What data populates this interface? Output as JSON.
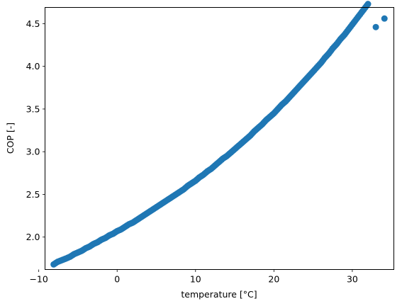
{
  "chart_data": {
    "type": "scatter",
    "title": "",
    "xlabel": "temperature [°C]",
    "ylabel": "COP [-]",
    "xlim": [
      -9.2,
      35.3
    ],
    "ylim": [
      1.62,
      4.69
    ],
    "xticks": [
      -10,
      0,
      10,
      20,
      30
    ],
    "xtick_labels": [
      "−10",
      "0",
      "10",
      "20",
      "30"
    ],
    "yticks": [
      2.0,
      2.5,
      3.0,
      3.5,
      4.0,
      4.5
    ],
    "ytick_labels": [
      "2.0",
      "2.5",
      "3.0",
      "3.5",
      "4.0",
      "4.5"
    ],
    "grid": false,
    "legend": "none",
    "marker_color": "#1f77b4",
    "series": [
      {
        "x": [
          -8.1,
          -7.6,
          -6.5,
          -6.0,
          -5.5,
          -5.0,
          -4.5,
          -4.0,
          -3.5,
          -3.0,
          -2.5,
          -2.0,
          -1.5,
          -1.0,
          -0.5,
          0.0,
          0.5,
          1.0,
          1.5,
          2.0,
          2.5,
          3.0,
          3.5,
          4.0,
          4.5,
          5.0,
          5.5,
          6.0,
          6.5,
          7.0,
          7.5,
          8.0,
          8.5,
          9.0,
          9.5,
          10.0,
          10.5,
          11.0,
          11.5,
          12.0,
          12.5,
          13.0,
          13.5,
          14.0,
          14.5,
          15.0,
          15.5,
          16.0,
          16.5,
          17.0,
          17.5,
          18.0,
          18.5,
          19.0,
          19.5,
          20.0,
          20.5,
          21.0,
          21.5,
          22.0,
          22.5,
          23.0,
          23.5,
          24.0,
          24.5,
          25.0,
          25.5,
          26.0,
          26.5,
          27.0,
          27.5,
          28.0,
          28.5,
          29.0,
          29.5,
          30.0,
          30.5,
          31.0,
          31.5,
          32.0,
          33.0,
          34.1
        ],
        "y": [
          1.68,
          1.71,
          1.75,
          1.77,
          1.8,
          1.82,
          1.84,
          1.87,
          1.89,
          1.92,
          1.94,
          1.97,
          1.99,
          2.02,
          2.04,
          2.07,
          2.09,
          2.12,
          2.15,
          2.17,
          2.2,
          2.23,
          2.26,
          2.29,
          2.32,
          2.35,
          2.38,
          2.41,
          2.44,
          2.47,
          2.5,
          2.53,
          2.56,
          2.6,
          2.63,
          2.66,
          2.7,
          2.73,
          2.77,
          2.8,
          2.84,
          2.88,
          2.92,
          2.95,
          2.99,
          3.03,
          3.07,
          3.11,
          3.15,
          3.19,
          3.24,
          3.28,
          3.32,
          3.37,
          3.41,
          3.45,
          3.5,
          3.55,
          3.59,
          3.64,
          3.69,
          3.74,
          3.79,
          3.84,
          3.89,
          3.94,
          3.99,
          4.04,
          4.1,
          4.15,
          4.21,
          4.26,
          4.32,
          4.37,
          4.43,
          4.49,
          4.55,
          4.61,
          4.67,
          4.73,
          4.46,
          4.56
        ]
      }
    ]
  }
}
